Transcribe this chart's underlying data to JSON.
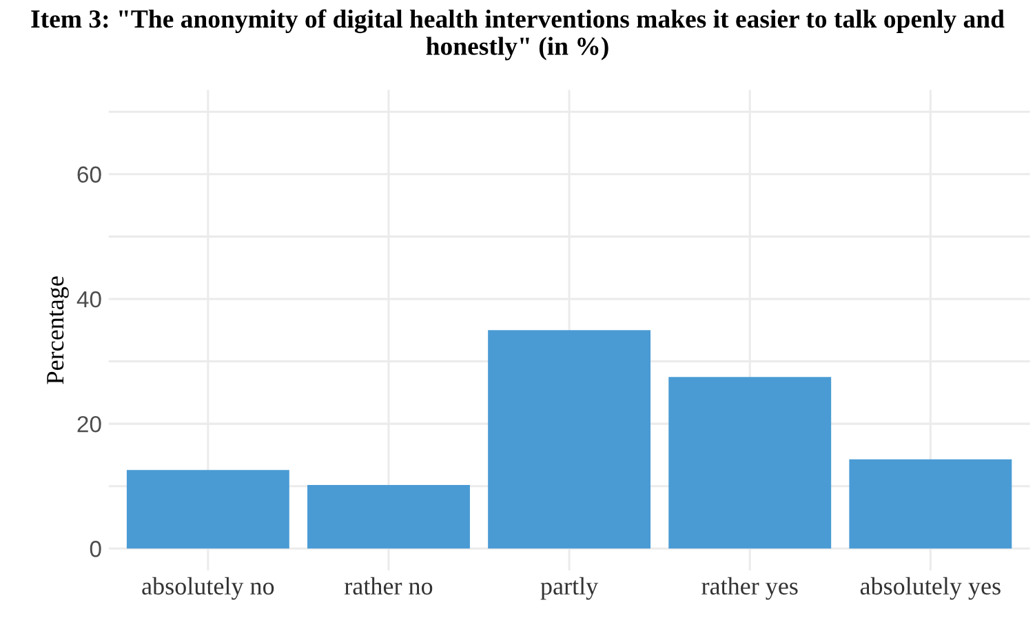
{
  "chart_data": {
    "type": "bar",
    "title": "Item 3: \"The anonymity of digital health interventions makes it easier to talk openly and honestly\" (in %)",
    "ylabel": "Percentage",
    "categories": [
      "absolutely no",
      "rather no",
      "partly",
      "rather yes",
      "absolutely yes"
    ],
    "values": [
      12.6,
      10.2,
      35.0,
      27.5,
      14.3
    ],
    "color": "#4a9bd4",
    "ylim": [
      -3.5,
      73.5
    ],
    "yticks": [
      0,
      {
        "value": 10,
        "label": null
      },
      20,
      {
        "value": 30,
        "label": null
      },
      40,
      {
        "value": 50,
        "label": null
      },
      60,
      {
        "value": 70,
        "label": null
      }
    ],
    "grid": true
  }
}
